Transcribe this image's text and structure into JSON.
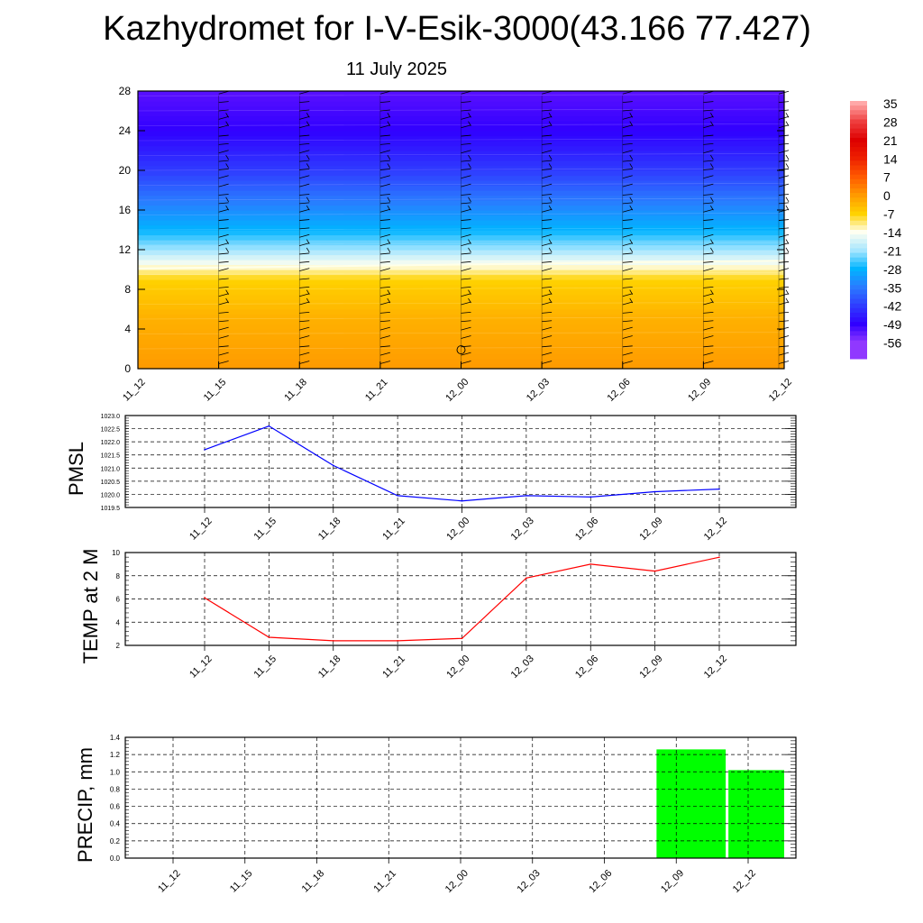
{
  "title": "Kazhydromet for I-V-Esik-3000(43.166 77.427)",
  "subtitle": "11 July 2025",
  "time_labels": [
    "11_12",
    "11_15",
    "11_18",
    "11_21",
    "12_00",
    "12_03",
    "12_06",
    "12_09",
    "12_12"
  ],
  "colors": {
    "pmsl_line": "#0000ff",
    "temp_line": "#ff0000",
    "precip_bar": "#00ff00"
  },
  "chart_data": [
    {
      "type": "heatmap",
      "name": "upper-air-temperature",
      "x": [
        "11_12",
        "11_15",
        "11_18",
        "11_21",
        "12_00",
        "12_03",
        "12_06",
        "12_09",
        "12_12"
      ],
      "ylim": [
        0,
        28
      ],
      "yticks": [
        "0",
        "4",
        "8",
        "12",
        "16",
        "20",
        "24",
        "28"
      ],
      "freezing_level": [
        10.1,
        10.2,
        10.3,
        10.4,
        10.5,
        10.6,
        10.7,
        10.8,
        10.9
      ],
      "colorbar": {
        "labels": [
          "35",
          "28",
          "21",
          "14",
          "7",
          "0",
          "-7",
          "-14",
          "-21",
          "-28",
          "-35",
          "-42",
          "-49",
          "-56"
        ],
        "colors": [
          "#ffa8a8",
          "#ee3e3e",
          "#dd0000",
          "#ee2000",
          "#ff5a00",
          "#ff9a00",
          "#ffd200",
          "#fffff0",
          "#a6e6ff",
          "#00b4ff",
          "#2a7aff",
          "#2f3cff",
          "#3000ff",
          "#9038ff"
        ]
      },
      "grid": false
    },
    {
      "type": "line",
      "ylabel": "PMSL",
      "x": [
        "11_12",
        "11_15",
        "11_18",
        "11_21",
        "12_00",
        "12_03",
        "12_06",
        "12_09",
        "12_12"
      ],
      "values": [
        1021.7,
        1022.6,
        1021.1,
        1019.95,
        1019.75,
        1019.95,
        1019.9,
        1020.1,
        1020.2
      ],
      "ylim": [
        1019.5,
        1023.0
      ],
      "yticks": [
        "1019.5",
        "1020.0",
        "1020.5",
        "1021.0",
        "1021.5",
        "1022.0",
        "1022.5",
        "1023.0"
      ],
      "grid": true
    },
    {
      "type": "line",
      "ylabel": "TEMP at 2 M",
      "x": [
        "11_12",
        "11_15",
        "11_18",
        "11_21",
        "12_00",
        "12_03",
        "12_06",
        "12_09",
        "12_12"
      ],
      "values": [
        6.1,
        2.7,
        2.4,
        2.4,
        2.6,
        7.8,
        9.0,
        8.4,
        9.6
      ],
      "ylim": [
        2,
        10
      ],
      "yticks": [
        "2",
        "4",
        "6",
        "8",
        "10"
      ],
      "grid": true
    },
    {
      "type": "bar",
      "ylabel": "PRECIP, mm",
      "categories": [
        "11_12",
        "11_15",
        "11_18",
        "11_21",
        "12_00",
        "12_03",
        "12_06",
        "12_09",
        "12_12"
      ],
      "values": [
        0,
        0,
        0,
        0,
        0,
        0,
        0,
        1.26,
        1.02
      ],
      "ylim": [
        0,
        1.4
      ],
      "yticks": [
        "0.0",
        "0.2",
        "0.4",
        "0.6",
        "0.8",
        "1.0",
        "1.2",
        "1.4"
      ],
      "grid": true
    }
  ]
}
